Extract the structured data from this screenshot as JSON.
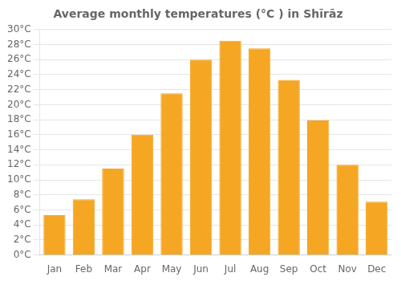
{
  "chart_data": {
    "type": "bar",
    "title": "Average monthly temperatures (°C ) in Shīrāz",
    "categories": [
      "Jan",
      "Feb",
      "Mar",
      "Apr",
      "May",
      "Jun",
      "Jul",
      "Aug",
      "Sep",
      "Oct",
      "Nov",
      "Dec"
    ],
    "values": [
      5.3,
      7.4,
      11.5,
      16.0,
      21.5,
      26.0,
      28.5,
      27.5,
      23.3,
      17.9,
      12.0,
      7.1
    ],
    "color": "#F5A623",
    "ylim": [
      0,
      30
    ],
    "yticks": [
      {
        "value": 0,
        "label": "0°C"
      },
      {
        "value": 2,
        "label": "2°C"
      },
      {
        "value": 4,
        "label": "4°C"
      },
      {
        "value": 6,
        "label": "6°C"
      },
      {
        "value": 8,
        "label": "8°C"
      },
      {
        "value": 10,
        "label": "10°C"
      },
      {
        "value": 12,
        "label": "12°C"
      },
      {
        "value": 14,
        "label": "14°C"
      },
      {
        "value": 16,
        "label": "16°C"
      },
      {
        "value": 18,
        "label": "18°C"
      },
      {
        "value": 20,
        "label": "20°C"
      },
      {
        "value": 22,
        "label": "22°C"
      },
      {
        "value": 24,
        "label": "24°C"
      },
      {
        "value": 26,
        "label": "26°C"
      },
      {
        "value": 28,
        "label": "28°C"
      },
      {
        "value": 30,
        "label": "30°C"
      }
    ],
    "grid": true
  }
}
